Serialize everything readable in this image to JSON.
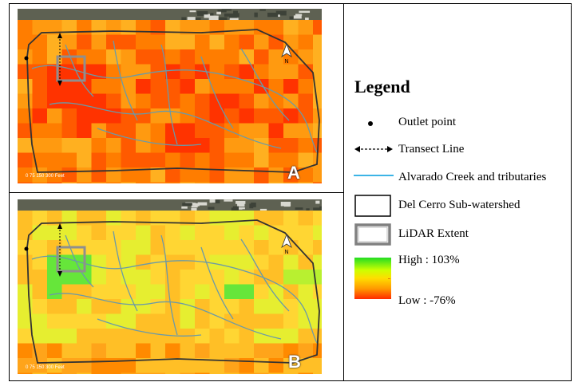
{
  "panels": [
    {
      "id": "A",
      "letter": "A",
      "scale_label": "0   75  150      300 Feet",
      "north_label": "N",
      "heat_variant": "low"
    },
    {
      "id": "B",
      "letter": "B",
      "scale_label": "0   75  150      300 Feet",
      "north_label": "N",
      "heat_variant": "high"
    }
  ],
  "legend": {
    "title": "Legend",
    "items": [
      {
        "key": "outlet",
        "label": "Outlet point",
        "icon": "dot-icon"
      },
      {
        "key": "transect",
        "label": "Transect Line",
        "icon": "double-arrow-line-icon"
      },
      {
        "key": "creek",
        "label": "Alvarado Creek and tributaries",
        "icon": "blue-line-icon",
        "color": "#3cb4e6"
      },
      {
        "key": "watershed",
        "label": "Del Cerro Sub-watershed",
        "icon": "black-outline-box-icon"
      },
      {
        "key": "lidar",
        "label": "LiDAR Extent",
        "icon": "gray-outline-box-icon"
      }
    ],
    "ramp": {
      "high_label": "High : 103%",
      "low_label": "Low : -76%",
      "colors": [
        "#22dd22",
        "#ccff00",
        "#ffdd00",
        "#ff9900",
        "#ff2a00"
      ]
    }
  }
}
